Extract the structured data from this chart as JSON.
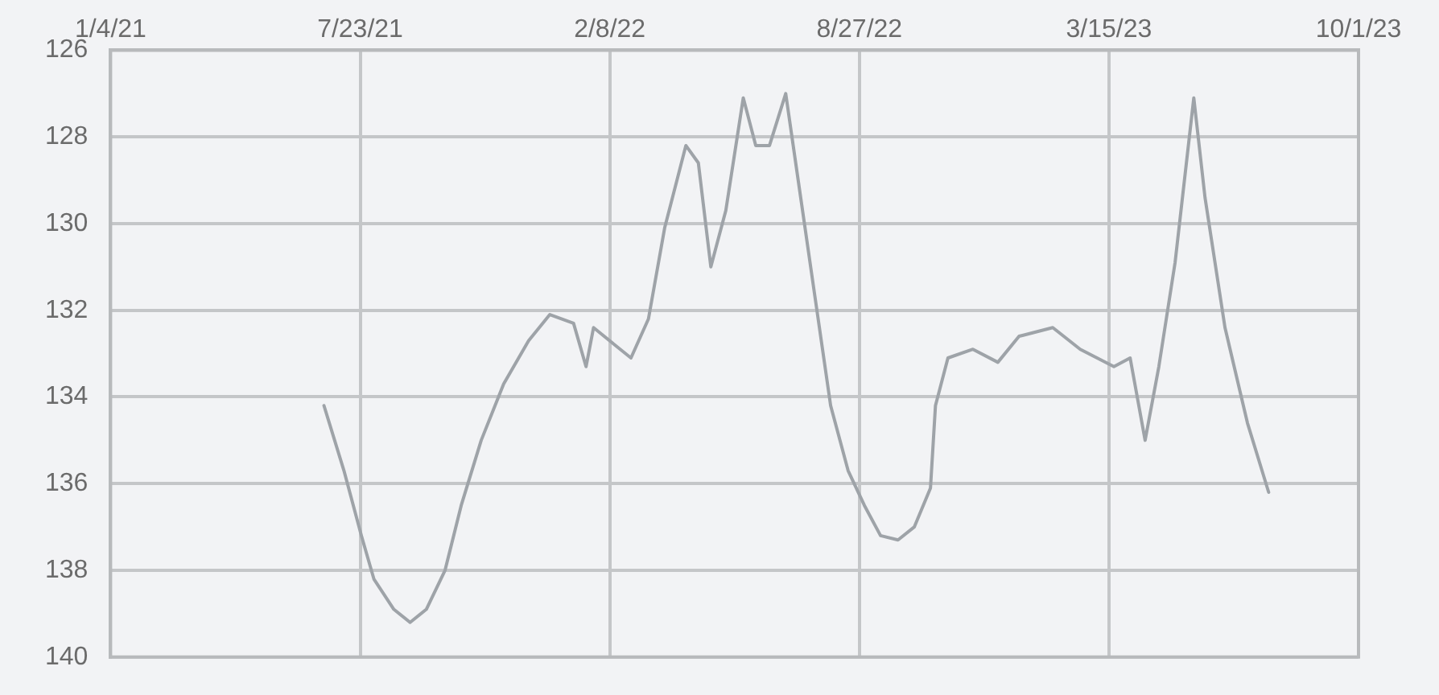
{
  "chart_data": {
    "type": "line",
    "x": [
      "2021-06-24",
      "2021-07-10",
      "2021-07-24",
      "2021-08-03",
      "2021-08-19",
      "2021-09-01",
      "2021-09-14",
      "2021-09-29",
      "2021-10-12",
      "2021-10-28",
      "2021-11-15",
      "2021-12-05",
      "2021-12-22",
      "2022-01-10",
      "2022-01-20",
      "2022-01-26",
      "2022-02-12",
      "2022-02-25",
      "2022-03-11",
      "2022-03-24",
      "2022-04-10",
      "2022-04-20",
      "2022-04-30",
      "2022-05-12",
      "2022-05-26",
      "2022-06-05",
      "2022-06-16",
      "2022-06-29",
      "2022-07-11",
      "2022-07-22",
      "2022-08-04",
      "2022-08-18",
      "2022-08-31",
      "2022-09-13",
      "2022-09-27",
      "2022-10-10",
      "2022-10-23",
      "2022-10-27",
      "2022-11-06",
      "2022-11-26",
      "2022-12-16",
      "2023-01-02",
      "2023-01-29",
      "2023-02-20",
      "2023-03-19",
      "2023-04-01",
      "2023-04-13",
      "2023-04-24",
      "2023-05-07",
      "2023-05-22",
      "2023-05-31",
      "2023-06-16",
      "2023-07-04",
      "2023-07-21"
    ],
    "series": [
      {
        "color": "#9ea3a8",
        "values": [
          134.2,
          135.7,
          137.2,
          138.2,
          138.9,
          139.2,
          138.9,
          138.0,
          136.5,
          135.0,
          133.7,
          132.7,
          132.1,
          132.3,
          133.3,
          132.4,
          132.8,
          133.1,
          132.2,
          130.1,
          128.2,
          128.6,
          131.0,
          129.7,
          127.1,
          128.2,
          128.2,
          127.0,
          129.4,
          131.6,
          134.2,
          135.7,
          136.5,
          137.2,
          137.3,
          137.0,
          136.1,
          134.2,
          133.1,
          132.9,
          133.2,
          132.6,
          132.4,
          132.9,
          133.3,
          133.1,
          135.0,
          133.3,
          130.9,
          127.1,
          129.4,
          132.4,
          134.6,
          136.2
        ]
      }
    ],
    "xlim": [
      "2021-01-04",
      "2023-10-01"
    ],
    "xticks": [
      {
        "value": "2021-01-04",
        "label": "1/4/21"
      },
      {
        "value": "2021-07-23",
        "label": "7/23/21"
      },
      {
        "value": "2022-02-08",
        "label": "2/8/22"
      },
      {
        "value": "2022-08-27",
        "label": "8/27/22"
      },
      {
        "value": "2023-03-15",
        "label": "3/15/23"
      },
      {
        "value": "2023-10-01",
        "label": "10/1/23"
      }
    ],
    "ylim": [
      140,
      126
    ],
    "yticks": [
      126,
      128,
      130,
      132,
      134,
      136,
      138,
      140
    ],
    "grid": true,
    "marker": "none",
    "line_style": "solid"
  }
}
